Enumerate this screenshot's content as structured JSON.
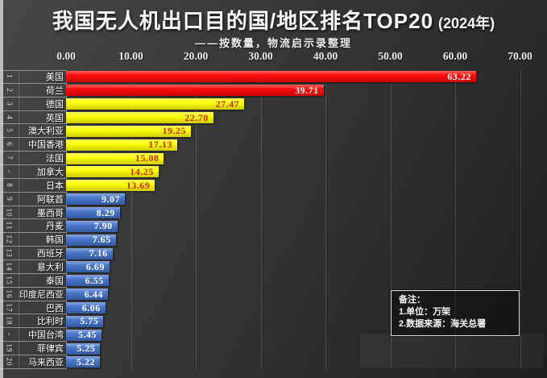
{
  "header": {
    "title_main": "我国无人机出口目的国/地区排名TOP20",
    "title_year": "(2024年)",
    "subtitle": "——按数量，物流启示录整理"
  },
  "chart_data": {
    "type": "bar",
    "orientation": "horizontal",
    "title": "我国无人机出口目的国/地区排名TOP20 (2024年)",
    "subtitle": "——按数量，物流启示录整理",
    "unit": "万架",
    "xlim": [
      0,
      70
    ],
    "xticks": [
      "0.00",
      "10.00",
      "20.00",
      "30.00",
      "40.00",
      "50.00",
      "60.00",
      "70.00"
    ],
    "grid": true,
    "colors": {
      "red": "#fe0000",
      "yellow": "#ffff00",
      "blue": "#4070c8"
    },
    "value_text_colors": {
      "red": "#ffffff",
      "yellow": "#cc2b00",
      "blue": "#ffffff"
    },
    "rows": [
      {
        "rank": "1",
        "name": "美国",
        "value": 63.22,
        "label": "63.22",
        "color": "red"
      },
      {
        "rank": "2",
        "name": "荷兰",
        "value": 39.71,
        "label": "39.71",
        "color": "red"
      },
      {
        "rank": "3",
        "name": "德国",
        "value": 27.47,
        "label": "27.47",
        "color": "yellow"
      },
      {
        "rank": "4",
        "name": "英国",
        "value": 22.7,
        "label": "22.70",
        "color": "yellow"
      },
      {
        "rank": "5",
        "name": "澳大利亚",
        "value": 19.25,
        "label": "19.25",
        "color": "yellow"
      },
      {
        "rank": "6",
        "name": "中国香港",
        "value": 17.13,
        "label": "17.13",
        "color": "yellow"
      },
      {
        "rank": "7",
        "name": "法国",
        "value": 15.08,
        "label": "15.08",
        "color": "yellow"
      },
      {
        "rank": "-",
        "name": "加拿大",
        "value": 14.25,
        "label": "14.25",
        "color": "yellow"
      },
      {
        "rank": "8",
        "name": "日本",
        "value": 13.69,
        "label": "13.69",
        "color": "yellow"
      },
      {
        "rank": "9",
        "name": "阿联酋",
        "value": 9.07,
        "label": "9.07",
        "color": "blue"
      },
      {
        "rank": "10",
        "name": "墨西哥",
        "value": 8.29,
        "label": "8.29",
        "color": "blue"
      },
      {
        "rank": "11",
        "name": "丹麦",
        "value": 7.9,
        "label": "7.90",
        "color": "blue"
      },
      {
        "rank": "12",
        "name": "韩国",
        "value": 7.65,
        "label": "7.65",
        "color": "blue"
      },
      {
        "rank": "13",
        "name": "西班牙",
        "value": 7.16,
        "label": "7.16",
        "color": "blue"
      },
      {
        "rank": "14",
        "name": "意大利",
        "value": 6.69,
        "label": "6.69",
        "color": "blue"
      },
      {
        "rank": "15",
        "name": "泰国",
        "value": 6.55,
        "label": "6.55",
        "color": "blue"
      },
      {
        "rank": "16",
        "name": "印度尼西亚",
        "value": 6.44,
        "label": "6.44",
        "color": "blue"
      },
      {
        "rank": "17",
        "name": "巴西",
        "value": 6.06,
        "label": "6.06",
        "color": "blue"
      },
      {
        "rank": "18",
        "name": "比利时",
        "value": 5.75,
        "label": "5.75",
        "color": "blue"
      },
      {
        "rank": "-",
        "name": "中国台湾",
        "value": 5.45,
        "label": "5.45",
        "color": "blue"
      },
      {
        "rank": "19",
        "name": "菲律宾",
        "value": 5.25,
        "label": "5.25",
        "color": "blue"
      },
      {
        "rank": "20",
        "name": "马来西亚",
        "value": 5.22,
        "label": "5.22",
        "color": "blue"
      }
    ]
  },
  "note": {
    "title": "备注：",
    "lines": [
      "1.单位：万架",
      "2.数据来源：海关总署"
    ]
  }
}
